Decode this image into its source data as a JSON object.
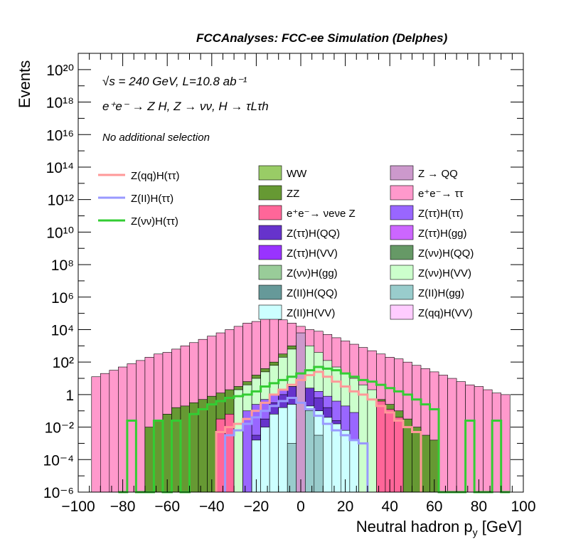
{
  "header": {
    "title": "FCCAnalyses: FCC-ee Simulation (Delphes)"
  },
  "annotations": [
    "√s = 240 GeV, L=10.8 ab⁻¹",
    "e⁺e⁻ → Z H, Z → νν, H → τLτh",
    "No additional selection"
  ],
  "chart_data": {
    "type": "area",
    "xlabel": "Neutral hadron p_y [GeV]",
    "ylabel": "Events",
    "xlim": [
      -100,
      100
    ],
    "ylim": [
      1e-06,
      1e+21
    ],
    "y_scale": "log",
    "xticks": [
      "−100",
      "−80",
      "−60",
      "−40",
      "−20",
      "0",
      "20",
      "40",
      "60",
      "80",
      "100"
    ],
    "yticks": [
      "10⁻⁶",
      "10⁻⁴",
      "10⁻²",
      "1",
      "10²",
      "10⁴",
      "10⁶",
      "10⁸",
      "10¹⁰",
      "10¹²",
      "10¹⁴",
      "10¹⁶",
      "10¹⁸",
      "10²⁰"
    ],
    "bin_width": 4,
    "stack": [
      {
        "name": "e⁺e⁻ → ττ",
        "color": "#ff99cc",
        "x0": -94,
        "x1": 94,
        "log_values": [
          1.1,
          1.3,
          1.5,
          1.7,
          1.9,
          2.1,
          2.3,
          2.5,
          2.6,
          2.8,
          3,
          3.2,
          3.4,
          3.6,
          3.8,
          4,
          4.2,
          4.4,
          4.5,
          4.8,
          4.9,
          4.6,
          4.4,
          4.2,
          4,
          3.9,
          3.7,
          3.5,
          3.3,
          3.1,
          2.9,
          2.7,
          2.5,
          2.3,
          2.2,
          2,
          1.8,
          1.6,
          1.4,
          1.2,
          1,
          0.8,
          0.6,
          0.5,
          0.3,
          0.1,
          0
        ]
      },
      {
        "name": "ZZ",
        "color": "#669933",
        "x0": -70,
        "x1": 62,
        "log_values": [
          -2.0,
          -1.6,
          -1.2,
          -0.8,
          -0.7,
          -0.5,
          -0.3,
          -0.1,
          0.1,
          0.3,
          0.5,
          0.8,
          1.2,
          1.6,
          2.0,
          2.5,
          3.0,
          2.0,
          1.5,
          1.2,
          0.9,
          0.7,
          0.5,
          0.3,
          0.1,
          -0.1,
          -0.3,
          -0.6,
          -1.0,
          -1.5,
          -2.0,
          -2.5,
          -2.8
        ]
      },
      {
        "name": "e⁺e⁻ → νeνe Z",
        "color": "#ff6699",
        "x0": -38,
        "x1": 46,
        "log_values": [
          -1.5,
          -1.2,
          -0.8,
          -0.5,
          -0.3,
          0.0,
          0.4,
          0.8,
          1.1,
          1.4,
          1.8,
          1.6,
          1.3,
          1.0,
          0.8,
          0.5,
          0.3,
          0.0,
          -0.4,
          -0.9,
          -1.4
        ]
      },
      {
        "name": "Z(νν)H(VV)",
        "color": "#ccffcc",
        "x0": -30,
        "x1": 34,
        "log_values": [
          0.3,
          0.6,
          1.0,
          1.4,
          1.8,
          2.3,
          2.8,
          3.2,
          3.0,
          2.6,
          2.1,
          1.7,
          1.3,
          1.0,
          0.6,
          0.3
        ]
      },
      {
        "name": "Z(ττ)H(ττ)",
        "color": "#9966ff",
        "x0": -26,
        "x1": 26,
        "log_values": [
          -1.0,
          -0.6,
          -0.3,
          0.0,
          0.3,
          0.5,
          0.6,
          0.4,
          0.2,
          -0.1,
          -0.4,
          -0.7,
          -1.1
        ]
      },
      {
        "name": "Z(ττ)H(QQ)",
        "color": "#6633cc",
        "x0": -22,
        "x1": 22,
        "log_values": [
          -2.5,
          -1.5,
          -0.5,
          0.0,
          0.5,
          0.8,
          0.4,
          -0.2,
          -0.8,
          -1.6,
          -2.6
        ]
      },
      {
        "name": "Z(II)H(VV)",
        "color": "#ccffff",
        "x0": -22,
        "x1": 26,
        "log_values": [
          -2.8,
          -2.0,
          -1.2,
          -0.8,
          -0.6,
          -0.5,
          -0.7,
          -1.0,
          -1.4,
          -1.8,
          -2.2,
          -2.8
        ]
      },
      {
        "name": "Z(II)H(gg)",
        "color": "#99cccc",
        "x0": -6,
        "x1": 10,
        "log_values": [
          -3.0,
          -1.5,
          -1.0,
          -2.5
        ]
      },
      {
        "name": "Z → QQ",
        "color": "#cc99cc",
        "x0": -2,
        "x1": 2,
        "log_values": [
          3.8
        ]
      }
    ],
    "overlays": [
      {
        "name": "Z(qq)H(ττ)",
        "color": "#ff9999",
        "x0": -38,
        "x1": 54,
        "log_values": [
          -2.3,
          -2.0,
          -1.8,
          -1.5,
          -1.0,
          -0.5,
          0.0,
          0.3,
          0.6,
          0.9,
          1.2,
          1.4,
          1.1,
          0.8,
          0.5,
          0.2,
          0.0,
          -0.3,
          -0.7,
          -1.1,
          -1.6,
          -2.0,
          -2.3
        ]
      },
      {
        "name": "Z(II)H(ττ)",
        "color": "#9999ff",
        "x0": -34,
        "x1": 30,
        "log_values": [
          -2.5,
          -2.2,
          -1.8,
          -1.4,
          -1.0,
          -0.7,
          -0.4,
          -0.2,
          -0.5,
          -0.9,
          -1.3,
          -1.8,
          -2.2,
          -2.5,
          -2.8,
          -3.0
        ]
      },
      {
        "name": "Z(νν)H(ττ)",
        "color": "#33cc33",
        "x0": -82,
        "x1": 94,
        "log_values": [
          -6,
          -1.6,
          -6,
          -6,
          -1.6,
          -6,
          -1.6,
          -6,
          -1.2,
          -0.9,
          -0.6,
          -0.4,
          -0.2,
          -0.1,
          0.0,
          0.2,
          0.5,
          0.7,
          0.9,
          1.1,
          1.3,
          1.5,
          1.7,
          1.6,
          1.5,
          1.3,
          1.1,
          0.9,
          0.8,
          0.6,
          0.4,
          0.2,
          0.0,
          -0.3,
          -0.6,
          -0.9,
          -6,
          -6,
          -6,
          -1.6,
          -6,
          -6,
          -1.6,
          -6
        ]
      }
    ],
    "legend": {
      "placement": "top",
      "lines": [
        {
          "label": "Z(qq)H(ττ)",
          "color": "#ff9999"
        },
        {
          "label": "Z(II)H(ττ)",
          "color": "#9999ff"
        },
        {
          "label": "Z(νν)H(ττ)",
          "color": "#33cc33"
        }
      ],
      "boxes_col1": [
        {
          "label": "WW",
          "color": "#99cc66"
        },
        {
          "label": "ZZ",
          "color": "#669933"
        },
        {
          "label": "e⁺e⁻→ νeνe Z",
          "color": "#ff6699"
        },
        {
          "label": "Z(ττ)H(QQ)",
          "color": "#6633cc"
        },
        {
          "label": "Z(ττ)H(VV)",
          "color": "#9933ff"
        },
        {
          "label": "Z(νν)H(gg)",
          "color": "#99cc99"
        },
        {
          "label": "Z(II)H(QQ)",
          "color": "#669999"
        },
        {
          "label": "Z(II)H(VV)",
          "color": "#ccffff"
        }
      ],
      "boxes_col2": [
        {
          "label": "Z → QQ",
          "color": "#cc99cc"
        },
        {
          "label": "e⁺e⁻→ ττ",
          "color": "#ff99cc"
        },
        {
          "label": "Z(ττ)H(ττ)",
          "color": "#9966ff"
        },
        {
          "label": "Z(ττ)H(gg)",
          "color": "#cc66ff"
        },
        {
          "label": "Z(νν)H(QQ)",
          "color": "#669966"
        },
        {
          "label": "Z(νν)H(VV)",
          "color": "#ccffcc"
        },
        {
          "label": "Z(II)H(gg)",
          "color": "#99cccc"
        },
        {
          "label": "Z(qq)H(VV)",
          "color": "#ffccff"
        }
      ]
    }
  }
}
